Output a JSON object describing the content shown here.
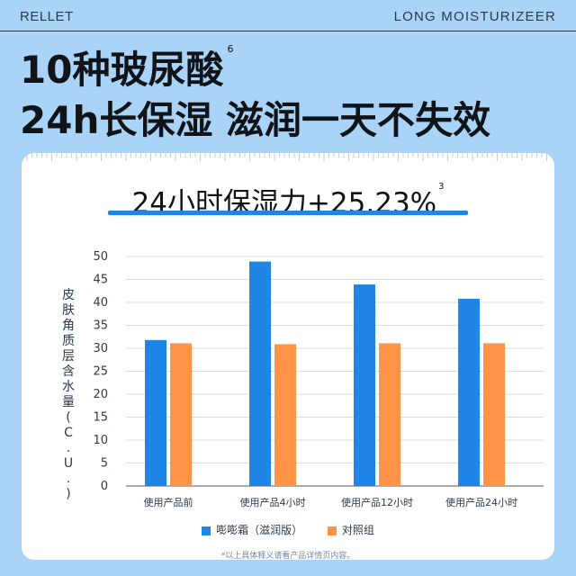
{
  "header": {
    "brand": "RELLET",
    "tagline": "LONG  MOISTURIZEER",
    "headline_line1": "10种玻尿酸",
    "headline_line1_sup": "6",
    "headline_line2": "24h长保湿 滋润一天不失效"
  },
  "card": {
    "subheadline": "24小时保湿力+25.23%",
    "subheadline_sup": "3",
    "footnote": "*以上具体释义请看产品详情页内容。"
  },
  "colors": {
    "background": "#a9d4f7",
    "accent": "#1f86e8",
    "series_a": "#1f86e8",
    "series_b": "#ff9447"
  },
  "chart_data": {
    "type": "bar",
    "ylabel": "皮肤角质层含水量(C.U.)",
    "ylim": [
      0,
      50
    ],
    "yticks": [
      0,
      5,
      10,
      15,
      20,
      25,
      30,
      35,
      40,
      45,
      50
    ],
    "grid": true,
    "legend": "bottom",
    "categories": [
      "使用产品前",
      "使用产品4小时",
      "使用产品12小时",
      "使用产品24小时"
    ],
    "series": [
      {
        "name": "嘭嘭霜（滋润版）",
        "values": [
          31.8,
          48.9,
          43.9,
          40.8
        ]
      },
      {
        "name": "对照组",
        "values": [
          31.1,
          30.9,
          31.1,
          31.1
        ]
      }
    ]
  }
}
